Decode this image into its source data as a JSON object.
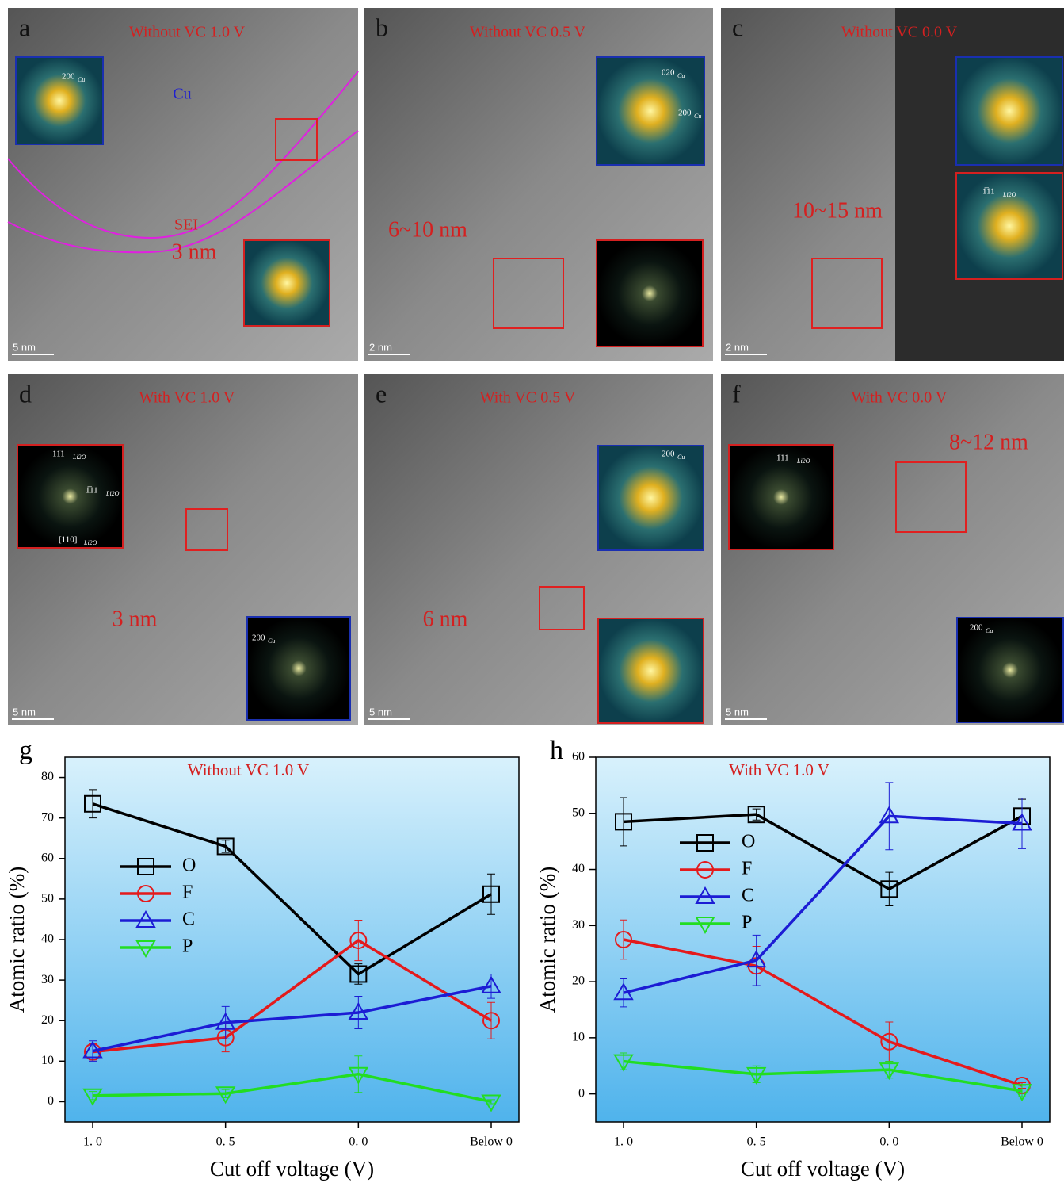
{
  "panels": [
    {
      "letter": "a",
      "title": "Without VC 1.0 V",
      "scale": "5 nm",
      "notes": [
        {
          "text": "Cu"
        },
        {
          "text": "SEI"
        },
        {
          "text": "3 nm"
        }
      ],
      "insets": [
        {
          "labels": [
            {
              "text": "200",
              "sub": "Cu"
            }
          ]
        },
        {}
      ]
    },
    {
      "letter": "b",
      "title": "Without VC 0.5 V",
      "scale": "2 nm",
      "notes": [
        {
          "text": "6~10 nm"
        }
      ],
      "insets": [
        {
          "labels": [
            {
              "text": "020",
              "sub": "Cu"
            },
            {
              "text": "200",
              "sub": "Cu"
            }
          ]
        },
        {}
      ]
    },
    {
      "letter": "c",
      "title": "Without VC 0.0 V",
      "scale": "2 nm",
      "notes": [
        {
          "text": "10~15 nm"
        }
      ],
      "insets": [
        {},
        {
          "labels": [
            {
              "text": "1̅11",
              "sub": "Li2O"
            }
          ]
        }
      ]
    },
    {
      "letter": "d",
      "title": "With VC 1.0 V",
      "scale": "5 nm",
      "notes": [
        {
          "text": "3 nm"
        }
      ],
      "insets": [
        {
          "labels": [
            {
              "text": "11̅1",
              "sub": "Li2O"
            },
            {
              "text": "1̅11",
              "sub": "Li2O"
            },
            {
              "text": "[110]",
              "sub": "Li2O"
            }
          ]
        },
        {
          "labels": [
            {
              "text": "200",
              "sub": "Cu"
            }
          ]
        }
      ]
    },
    {
      "letter": "e",
      "title": "With VC 0.5 V",
      "scale": "5 nm",
      "notes": [
        {
          "text": "6 nm"
        }
      ],
      "insets": [
        {
          "labels": [
            {
              "text": "200",
              "sub": "Cu"
            }
          ]
        },
        {}
      ]
    },
    {
      "letter": "f",
      "title": "With VC 0.0 V",
      "scale": "5 nm",
      "notes": [
        {
          "text": "8~12 nm"
        }
      ],
      "insets": [
        {
          "labels": [
            {
              "text": "1̅11",
              "sub": "Li2O"
            }
          ]
        },
        {
          "labels": [
            {
              "text": "200",
              "sub": "Cu"
            }
          ]
        }
      ]
    }
  ],
  "chart_data": [
    {
      "type": "line",
      "letter": "g",
      "title": "Without VC 1.0 V",
      "xlabel": "Cut off voltage (V)",
      "ylabel": "Atomic ratio (%)",
      "categories": [
        "1. 0",
        "0. 5",
        "0. 0",
        "Below 0"
      ],
      "ylim": [
        -5,
        85
      ],
      "yticks": [
        0,
        10,
        20,
        30,
        40,
        50,
        60,
        70,
        80
      ],
      "series": [
        {
          "name": "O",
          "color": "#000000",
          "marker": "square",
          "values": [
            73.5,
            63,
            31.5,
            51.2
          ],
          "errors": [
            3.5,
            1.5,
            2.5,
            5
          ]
        },
        {
          "name": "F",
          "color": "#e41a1c",
          "marker": "circle",
          "values": [
            12.3,
            15.8,
            39.8,
            20
          ],
          "errors": [
            2,
            3.5,
            5,
            4.5
          ]
        },
        {
          "name": "C",
          "color": "#1c1cd4",
          "marker": "triangle-up",
          "values": [
            12.5,
            19.5,
            22,
            28.5
          ],
          "errors": [
            2.5,
            4,
            4,
            3
          ]
        },
        {
          "name": "P",
          "color": "#22dd22",
          "marker": "triangle-down",
          "values": [
            1.5,
            2,
            6.8,
            0
          ],
          "errors": [
            1,
            1,
            4.5,
            0.5
          ]
        }
      ]
    },
    {
      "type": "line",
      "letter": "h",
      "title": "With VC 1.0 V",
      "xlabel": "Cut off voltage (V)",
      "ylabel": "Atomic ratio (%)",
      "categories": [
        "1. 0",
        "0. 5",
        "0. 0",
        "Below 0"
      ],
      "ylim": [
        -5,
        60
      ],
      "yticks": [
        0,
        10,
        20,
        30,
        40,
        50,
        60
      ],
      "series": [
        {
          "name": "O",
          "color": "#000000",
          "marker": "square",
          "values": [
            48.5,
            49.8,
            36.5,
            49.5
          ],
          "errors": [
            4.3,
            1,
            3,
            3
          ]
        },
        {
          "name": "F",
          "color": "#e41a1c",
          "marker": "circle",
          "values": [
            27.5,
            22.8,
            9.3,
            1.5
          ],
          "errors": [
            3.5,
            3.5,
            3.5,
            0.5
          ]
        },
        {
          "name": "C",
          "color": "#1c1cd4",
          "marker": "triangle-up",
          "values": [
            18,
            23.8,
            49.5,
            48.2
          ],
          "errors": [
            2.5,
            4.5,
            6,
            4.5
          ]
        },
        {
          "name": "P",
          "color": "#22dd22",
          "marker": "triangle-down",
          "values": [
            5.8,
            3.5,
            4.3,
            0.5
          ],
          "errors": [
            1.5,
            1.5,
            1.5,
            1
          ]
        }
      ]
    }
  ]
}
